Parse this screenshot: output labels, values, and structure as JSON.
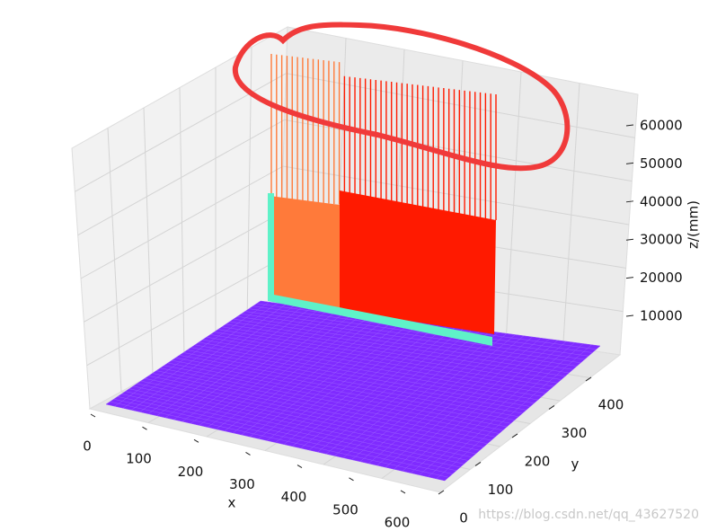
{
  "chart_data": {
    "type": "surface3d",
    "xlabel": "x",
    "ylabel": "y",
    "zlabel": "z/(mm)",
    "xlim": [
      0,
      650
    ],
    "ylim": [
      0,
      460
    ],
    "zlim": [
      0,
      68000
    ],
    "xticks": [
      0,
      100,
      200,
      300,
      400,
      500,
      600
    ],
    "yticks": [
      0,
      100,
      200,
      300,
      400
    ],
    "zticks": [
      10000,
      20000,
      30000,
      40000,
      50000,
      60000
    ],
    "watermark": "https://blog.csdn.net/qq_43627520"
  }
}
